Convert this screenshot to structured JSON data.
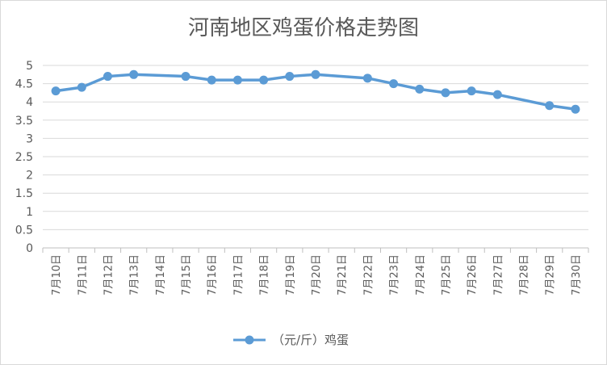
{
  "chart_data": {
    "type": "line",
    "title": "河南地区鸡蛋价格走势图",
    "xlabel": "",
    "ylabel": "",
    "categories": [
      "7月10日",
      "7月11日",
      "7月12日",
      "7月13日",
      "7月14日",
      "7月15日",
      "7月16日",
      "7月17日",
      "7月18日",
      "7月19日",
      "7月20日",
      "7月21日",
      "7月22日",
      "7月23日",
      "7月24日",
      "7月25日",
      "7月26日",
      "7月27日",
      "7月28日",
      "7月29日",
      "7月30日"
    ],
    "series": [
      {
        "name": "（元/斤）鸡蛋",
        "color": "#5b9bd5",
        "values": [
          4.3,
          4.4,
          4.7,
          4.75,
          null,
          4.7,
          4.6,
          4.6,
          4.6,
          4.7,
          4.75,
          null,
          4.65,
          4.5,
          4.35,
          4.25,
          4.3,
          4.2,
          null,
          3.9,
          3.8
        ]
      }
    ],
    "ylim": [
      0,
      5
    ],
    "yticks": [
      "0",
      "0.5",
      "1",
      "1.5",
      "2",
      "2.5",
      "3",
      "3.5",
      "4",
      "4.5",
      "5"
    ],
    "grid": true,
    "legend": "bottom"
  }
}
